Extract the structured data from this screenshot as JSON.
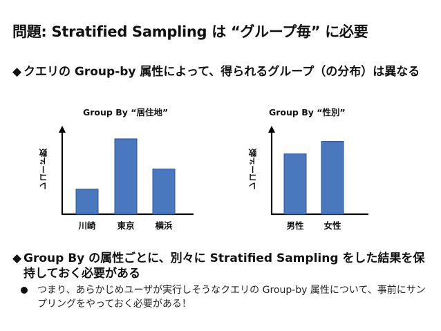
{
  "slide": {
    "title": "問題: Stratified Sampling は “グループ毎” に必要",
    "bullet1": "クエリの Group-by 属性によって、得られるグループ（の分布）は異なる",
    "bullet2": "Group By の属性ごとに、別々に Stratified Sampling をした結果を保持しておく必要がある",
    "sub_bullet": "つまり、あらかじめユーザが実行しそうなクエリの Group-by 属性について、事前にサンプリングをやっておく必要がある！",
    "bullet_glyph": "◆"
  },
  "chart_data": [
    {
      "type": "bar",
      "title": "Group By “居住地”",
      "ylabel": "レコード数",
      "categories": [
        "川崎",
        "東京",
        "横浜"
      ],
      "values": [
        1.0,
        3.0,
        1.8
      ],
      "ylim": [
        0,
        3.3
      ],
      "bar_color": "#4a78be"
    },
    {
      "type": "bar",
      "title": "Group By “性別”",
      "ylabel": "レコード数",
      "categories": [
        "男性",
        "女性"
      ],
      "values": [
        2.4,
        2.9
      ],
      "ylim": [
        0,
        3.3
      ],
      "bar_color": "#4a78be"
    }
  ]
}
